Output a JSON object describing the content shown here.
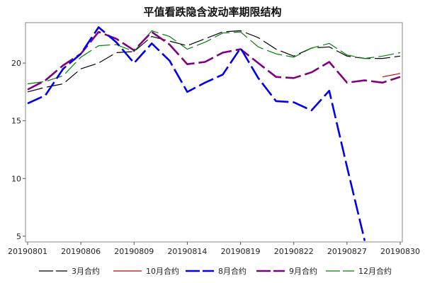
{
  "chart_data": {
    "type": "line",
    "title": "平值看跌隐含波动率期限结构",
    "xlabel": "",
    "ylabel": "",
    "x": [
      "20190801",
      "20190802",
      "20190805",
      "20190806",
      "20190807",
      "20190808",
      "20190809",
      "20190812",
      "20190813",
      "20190814",
      "20190815",
      "20190816",
      "20190819",
      "20190820",
      "20190821",
      "20190822",
      "20190823",
      "20190826",
      "20190827",
      "20190828",
      "20190829",
      "20190830"
    ],
    "x_tick_labels": [
      "20190801",
      "20190806",
      "20190809",
      "20190814",
      "20190819",
      "20190822",
      "20190827",
      "20190830"
    ],
    "y_ticks": [
      5,
      10,
      15,
      20
    ],
    "ylim": [
      4.5,
      23.5
    ],
    "grid": false,
    "legend_position": "bottom",
    "series": [
      {
        "name": "3月合约",
        "color": "#000000",
        "dash": "long-dash",
        "values": [
          17.5,
          17.9,
          18.2,
          19.5,
          20.0,
          20.9,
          21.0,
          22.3,
          21.9,
          21.5,
          22.1,
          22.7,
          22.8,
          22.2,
          21.2,
          20.6,
          21.3,
          21.4,
          20.6,
          20.4,
          20.4,
          20.6
        ]
      },
      {
        "name": "10月合约",
        "color": "#cc0000",
        "dash": "solid",
        "values": [
          null,
          null,
          null,
          null,
          null,
          null,
          null,
          null,
          null,
          null,
          null,
          null,
          null,
          null,
          null,
          null,
          null,
          null,
          null,
          null,
          18.8,
          19.1
        ]
      },
      {
        "name": "8月合约",
        "color": "#0000ee",
        "dash": "long-dash",
        "values": [
          16.5,
          17.2,
          19.5,
          20.8,
          23.1,
          21.8,
          20.0,
          21.7,
          20.2,
          17.5,
          18.3,
          19.0,
          21.3,
          18.7,
          16.7,
          16.6,
          15.9,
          17.6,
          11.0,
          4.6,
          null,
          null
        ]
      },
      {
        "name": "9月合约",
        "color": "#800080",
        "dash": "long-dash",
        "values": [
          17.7,
          18.5,
          19.8,
          20.8,
          22.7,
          22.1,
          21.1,
          22.7,
          21.6,
          19.9,
          20.1,
          20.9,
          21.2,
          20.0,
          18.8,
          18.7,
          19.2,
          20.1,
          18.3,
          18.5,
          18.3,
          18.8
        ]
      },
      {
        "name": "12月合约",
        "color": "#008000",
        "dash": "long-dash",
        "values": [
          18.2,
          18.4,
          18.9,
          20.5,
          21.5,
          21.6,
          21.0,
          22.8,
          22.3,
          21.2,
          21.8,
          22.6,
          22.7,
          21.4,
          20.8,
          20.5,
          21.3,
          21.7,
          20.7,
          20.4,
          20.6,
          20.9
        ]
      }
    ]
  }
}
